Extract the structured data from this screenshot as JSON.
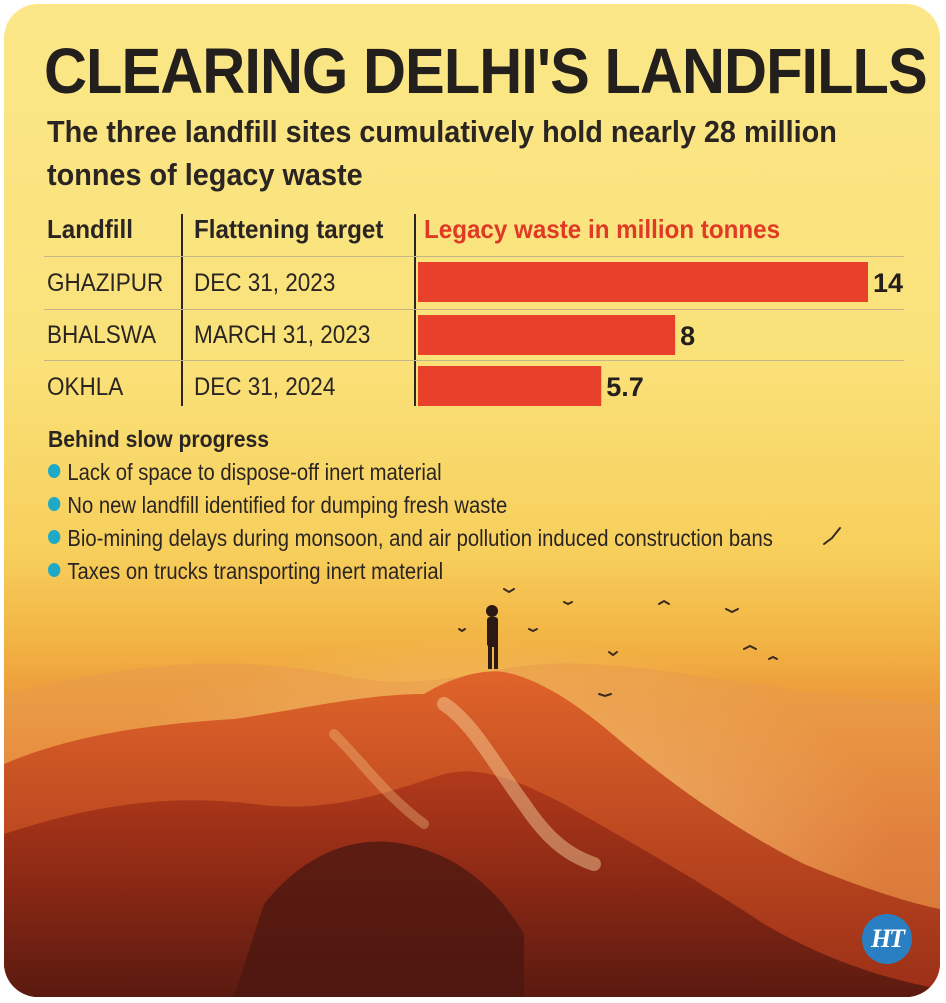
{
  "header": {
    "title": "CLEARING DELHI'S LANDFILLS",
    "subtitle": "The three landfill sites cumulatively hold nearly 28 million tonnes of legacy waste"
  },
  "table": {
    "col_landfill": "Landfill",
    "col_target": "Flattening target",
    "col_waste": "Legacy waste in million tonnes",
    "rows": [
      {
        "landfill": "GHAZIPUR",
        "target": "DEC 31, 2023",
        "value_label": "14"
      },
      {
        "landfill": "BHALSWA",
        "target": "MARCH 31, 2023",
        "value_label": "8"
      },
      {
        "landfill": "OKHLA",
        "target": "DEC 31, 2024",
        "value_label": "5.7"
      }
    ]
  },
  "chart_data": {
    "type": "bar",
    "orientation": "horizontal",
    "title": "Legacy waste in million tonnes",
    "categories": [
      "GHAZIPUR",
      "BHALSWA",
      "OKHLA"
    ],
    "values": [
      14,
      8,
      5.7
    ],
    "xlim": [
      0,
      14
    ],
    "bar_color": "#e8402a",
    "grid": false
  },
  "progress": {
    "title": "Behind slow progress",
    "items": [
      "Lack of space to dispose-off inert material",
      "No new landfill identified for dumping fresh waste",
      "Bio-mining delays during monsoon, and air pollution induced construction bans",
      "Taxes on trucks transporting inert material"
    ],
    "bullet_color": "#1fa9c8"
  },
  "logo": {
    "text": "HT",
    "color": "#2a7fc2"
  },
  "colors": {
    "background": "#fae27a",
    "accent": "#e03a26",
    "text": "#2a2522"
  }
}
